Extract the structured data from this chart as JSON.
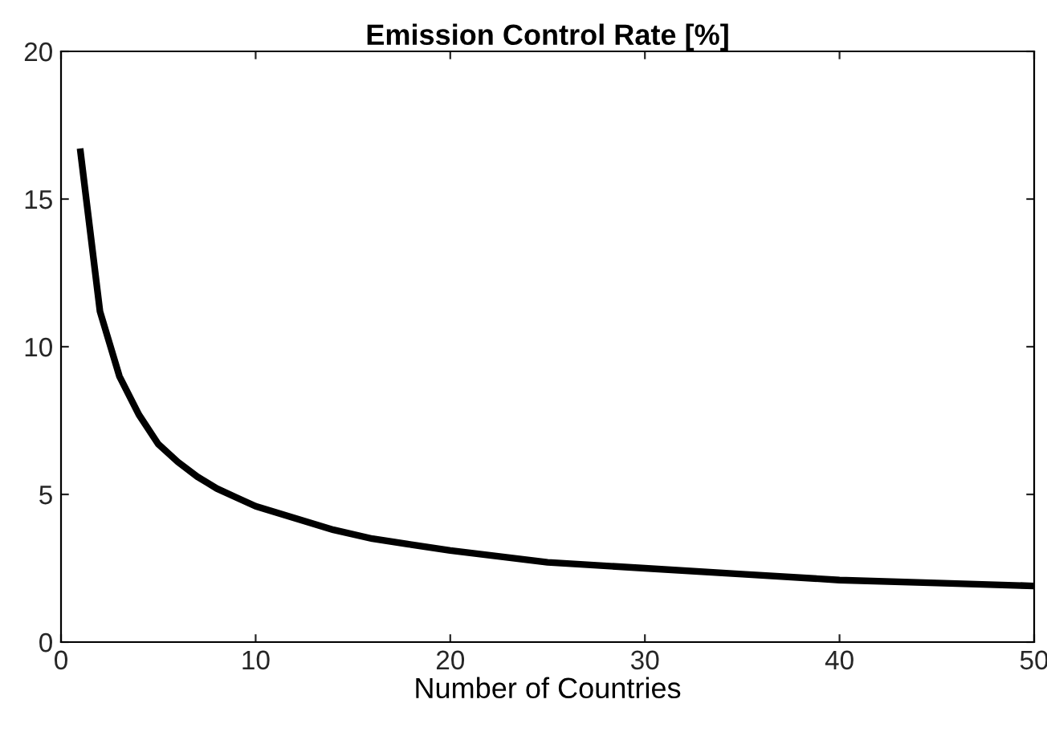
{
  "chart_data": {
    "type": "line",
    "title": "Emission Control Rate [%]",
    "xlabel": "Number of Countries",
    "x": [
      1,
      2,
      3,
      4,
      5,
      6,
      7,
      8,
      9,
      10,
      12,
      14,
      16,
      18,
      20,
      25,
      30,
      35,
      40,
      45,
      50
    ],
    "series": [
      {
        "color": "#000000",
        "values": [
          16.6,
          11.2,
          9.0,
          7.7,
          6.7,
          6.1,
          5.6,
          5.2,
          4.9,
          4.6,
          4.2,
          3.8,
          3.5,
          3.3,
          3.1,
          2.7,
          2.5,
          2.3,
          2.1,
          2.0,
          1.9
        ]
      }
    ],
    "xlim": [
      0,
      50
    ],
    "xticks": [
      0,
      10,
      20,
      30,
      40,
      50
    ],
    "ylim": [
      0,
      20
    ],
    "yticks": [
      0,
      5,
      10,
      15,
      20
    ],
    "grid": false,
    "legend": false,
    "marker": "none",
    "line_style": "solid"
  }
}
